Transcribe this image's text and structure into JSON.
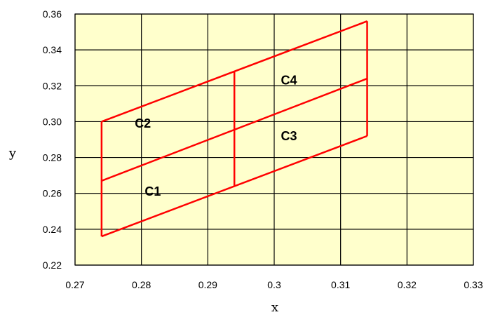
{
  "chart_data": {
    "type": "line",
    "title": "",
    "xlabel": "x",
    "ylabel": "y",
    "xlim": [
      0.27,
      0.33
    ],
    "ylim": [
      0.22,
      0.36
    ],
    "xticks": [
      "0.27",
      "0.28",
      "0.29",
      "0.3",
      "0.31",
      "0.32",
      "0.33"
    ],
    "yticks": [
      "0.22",
      "0.24",
      "0.26",
      "0.28",
      "0.30",
      "0.32",
      "0.34",
      "0.36"
    ],
    "grid": true,
    "legend": "none",
    "colors": {
      "plot_background": "#FFFFCC",
      "grid": "#000000",
      "series": "#FF0000"
    },
    "series": [
      {
        "x": [
          0.274,
          0.314
        ],
        "y": [
          0.236,
          0.292
        ]
      },
      {
        "x": [
          0.274,
          0.314
        ],
        "y": [
          0.267,
          0.324
        ]
      },
      {
        "x": [
          0.274,
          0.314
        ],
        "y": [
          0.3,
          0.356
        ]
      },
      {
        "x": [
          0.274,
          0.274
        ],
        "y": [
          0.236,
          0.3
        ]
      },
      {
        "x": [
          0.294,
          0.294
        ],
        "y": [
          0.264,
          0.328
        ]
      },
      {
        "x": [
          0.314,
          0.314
        ],
        "y": [
          0.292,
          0.356
        ]
      }
    ],
    "annotations": [
      {
        "text": "C1",
        "x": 0.2805,
        "y": 0.261
      },
      {
        "text": "C2",
        "x": 0.279,
        "y": 0.299
      },
      {
        "text": "C3",
        "x": 0.301,
        "y": 0.292
      },
      {
        "text": "C4",
        "x": 0.301,
        "y": 0.323
      }
    ]
  }
}
